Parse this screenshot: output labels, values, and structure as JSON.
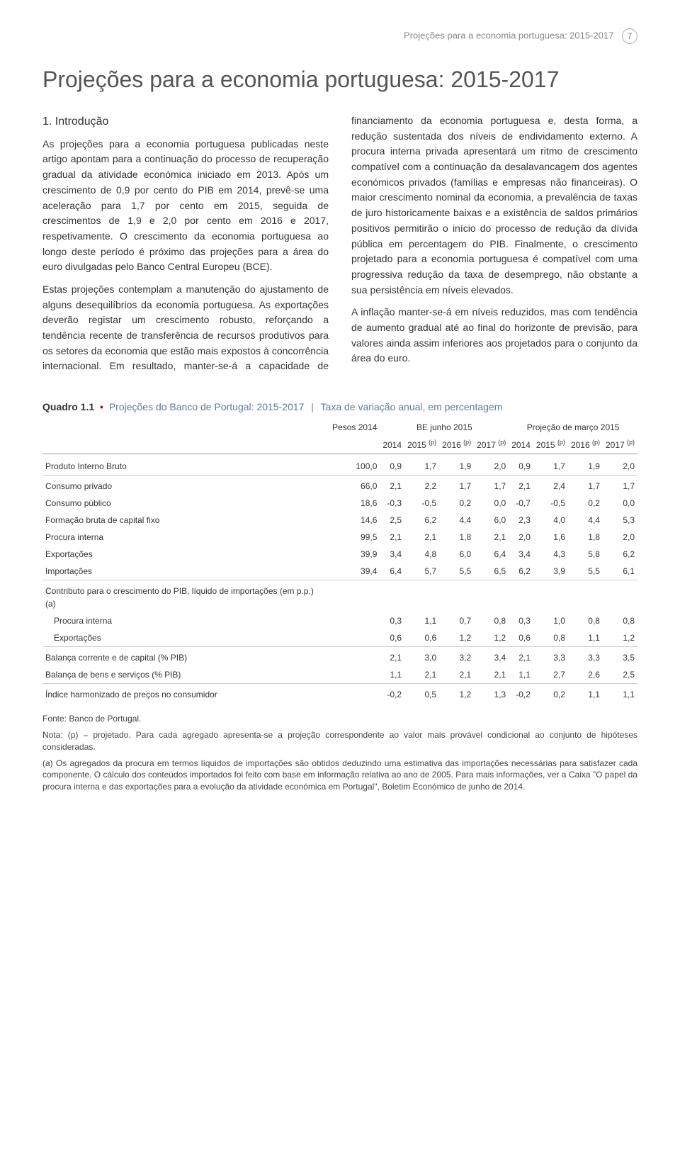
{
  "header": {
    "running_title": "Projeções para a economia portuguesa: 2015-2017",
    "page_number": "7"
  },
  "title": "Projeções para a economia portuguesa: 2015-2017",
  "section_heading": "1. Introdução",
  "paragraphs": [
    "As projeções para a economia portuguesa publicadas neste artigo apontam para a continuação do processo de recuperação gradual da atividade económica iniciado em 2013. Após um crescimento de 0,9 por cento do PIB em 2014, prevê-se uma aceleração para 1,7 por cento em 2015, seguida de crescimentos de 1,9 e 2,0 por cento em 2016 e 2017, respetivamente. O crescimento da economia portuguesa ao longo deste período é próximo das projeções para a área do euro divulgadas pelo Banco Central Europeu (BCE).",
    "Estas projeções contemplam a manutenção do ajustamento de alguns desequilíbrios da economia portuguesa. As exportações deverão registar um crescimento robusto, reforçando a tendência recente de transferência de recursos produtivos para os setores da economia que estão mais expostos à concorrência internacional. Em resultado, manter-se-á a capacidade de financiamento da economia portuguesa e, desta forma, a redução sustentada dos níveis de endividamento externo. A procura interna privada apresentará um ritmo de crescimento compatível com a continuação da desalavancagem dos agentes económicos privados (famílias e empresas não financeiras). O maior crescimento nominal da economia, a prevalência de taxas de juro historicamente baixas e a existência de saldos primários positivos permitirão o início do processo de redução da dívida pública em percentagem do PIB. Finalmente, o crescimento projetado para a economia portuguesa é compatível com uma progressiva redução da taxa de desemprego, não obstante a sua persistência em níveis elevados.",
    "A inflação manter-se-á em níveis reduzidos, mas com tendência de aumento gradual até ao final do horizonte de previsão, para valores ainda assim inferiores aos projetados para o conjunto da área do euro."
  ],
  "table": {
    "caption_strong": "Quadro 1.1",
    "caption_title": "Projeções do Banco de Portugal: 2015-2017",
    "caption_sub": "Taxa de variação anual, em percentagem",
    "group_headers": {
      "weights": "Pesos 2014",
      "left": "BE junho 2015",
      "right": "Projeção de março 2015"
    },
    "col_headers": [
      "2014",
      "2015 (p)",
      "2016 (p)",
      "2017 (p)",
      "2014",
      "2015 (p)",
      "2016 (p)",
      "2017 (p)"
    ],
    "rows": [
      {
        "label": "Produto Interno Bruto",
        "weight": "100,0",
        "vals": [
          "0,9",
          "1,7",
          "1,9",
          "2,0",
          "0,9",
          "1,7",
          "1,9",
          "2,0"
        ],
        "style": "section-top"
      },
      {
        "label": "Consumo privado",
        "weight": "66,0",
        "vals": [
          "2,1",
          "2,2",
          "1,7",
          "1,7",
          "2,1",
          "2,4",
          "1,7",
          "1,7"
        ],
        "style": "border-top"
      },
      {
        "label": "Consumo público",
        "weight": "18,6",
        "vals": [
          "-0,3",
          "-0,5",
          "0,2",
          "0,0",
          "-0,7",
          "-0,5",
          "0,2",
          "0,0"
        ]
      },
      {
        "label": "Formação bruta de capital fixo",
        "weight": "14,6",
        "vals": [
          "2,5",
          "6,2",
          "4,4",
          "6,0",
          "2,3",
          "4,0",
          "4,4",
          "5,3"
        ]
      },
      {
        "label": "Procura interna",
        "weight": "99,5",
        "vals": [
          "2,1",
          "2,1",
          "1,8",
          "2,1",
          "2,0",
          "1,6",
          "1,8",
          "2,0"
        ]
      },
      {
        "label": "Exportações",
        "weight": "39,9",
        "vals": [
          "3,4",
          "4,8",
          "6,0",
          "6,4",
          "3,4",
          "4,3",
          "5,8",
          "6,2"
        ]
      },
      {
        "label": "Importações",
        "weight": "39,4",
        "vals": [
          "6,4",
          "5,7",
          "5,5",
          "6,5",
          "6,2",
          "3,9",
          "5,5",
          "6,1"
        ]
      },
      {
        "label": "Contributo para o crescimento do PIB, líquido de importações (em p.p.) (a)",
        "weight": "",
        "vals": [
          "",
          "",
          "",
          "",
          "",
          "",
          "",
          ""
        ],
        "style": "border-top"
      },
      {
        "label": "Procura interna",
        "weight": "",
        "vals": [
          "0,3",
          "1,1",
          "0,7",
          "0,8",
          "0,3",
          "1,0",
          "0,8",
          "0,8"
        ],
        "style": "indent"
      },
      {
        "label": "Exportações",
        "weight": "",
        "vals": [
          "0,6",
          "0,6",
          "1,2",
          "1,2",
          "0,6",
          "0,8",
          "1,1",
          "1,2"
        ],
        "style": "indent"
      },
      {
        "label": "Balança corrente e de capital (% PIB)",
        "weight": "",
        "vals": [
          "2,1",
          "3,0",
          "3,2",
          "3,4",
          "2,1",
          "3,3",
          "3,3",
          "3,5"
        ],
        "style": "border-top"
      },
      {
        "label": "Balança de bens e serviços (% PIB)",
        "weight": "",
        "vals": [
          "1,1",
          "2,1",
          "2,1",
          "2,1",
          "1,1",
          "2,7",
          "2,6",
          "2,5"
        ]
      },
      {
        "label": "Índice harmonizado de preços no consumidor",
        "weight": "",
        "vals": [
          "-0,2",
          "0,5",
          "1,2",
          "1,3",
          "-0,2",
          "0,2",
          "1,1",
          "1,1"
        ],
        "style": "border-top"
      }
    ],
    "footnotes": {
      "source": "Fonte: Banco de Portugal.",
      "note_p": "Nota: (p) – projetado. Para cada agregado apresenta-se a projeção correspondente ao valor mais provável condicional ao conjunto de hipóteses consideradas.",
      "note_a": "(a) Os agregados da procura em termos líquidos de importações são obtidos deduzindo uma estimativa das importações necessárias para satisfazer cada componente. O cálculo dos conteúdos importados foi feito com base em informação relativa ao ano de 2005. Para mais informações, ver a Caixa \"O papel da procura interna e das exportações para a evolução da atividade económica em Portugal\", Boletim Económico de junho de 2014."
    }
  }
}
